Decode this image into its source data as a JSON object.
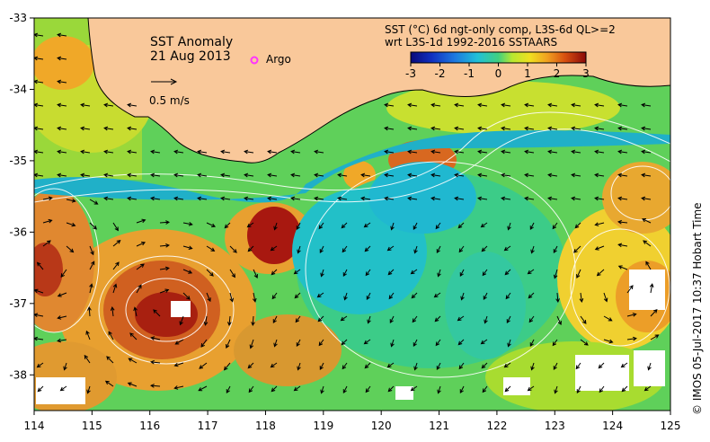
{
  "map": {
    "title": "SST Anomaly",
    "date": "21 Aug 2013",
    "argo_label": "Argo",
    "velocity_label": "0.5 m/s",
    "colorbar_title_line1": "SST (°C) 6d ngt-only comp, L3S-6d QL>=2",
    "colorbar_title_line2": "wrt L3S-1d 1992-2016 SSTAARS",
    "colorbar_ticks": [
      "-3",
      "-2",
      "-1",
      "0",
      "1",
      "2",
      "3"
    ],
    "colorbar_range": [
      -3,
      3
    ],
    "x_ticks": [
      "114",
      "115",
      "116",
      "117",
      "118",
      "119",
      "120",
      "121",
      "122",
      "123",
      "124",
      "125"
    ],
    "y_ticks": [
      "-33",
      "-34",
      "-35",
      "-36",
      "-37",
      "-38"
    ],
    "lon_range": [
      114,
      125
    ],
    "lat_range": [
      -38.5,
      -33
    ],
    "credit": "© IMOS 05-Jul-2017 10:37 Hobart Time",
    "colors": {
      "land": "#f9c89a",
      "argo": "#ff33ff",
      "coast": "#000000",
      "contour": "#ffffff"
    }
  }
}
